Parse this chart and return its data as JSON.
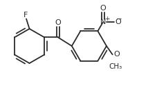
{
  "bg_color": "#ffffff",
  "bond_color": "#2a2a2a",
  "bond_lw": 1.3,
  "dbo": 0.048,
  "ring_r": 0.33,
  "fs": 8.0,
  "fs_small": 6.5,
  "figsize": [
    2.28,
    1.34
  ],
  "dpi": 100,
  "xlim": [
    -1.18,
    1.82
  ],
  "ylim": [
    -0.72,
    0.72
  ]
}
